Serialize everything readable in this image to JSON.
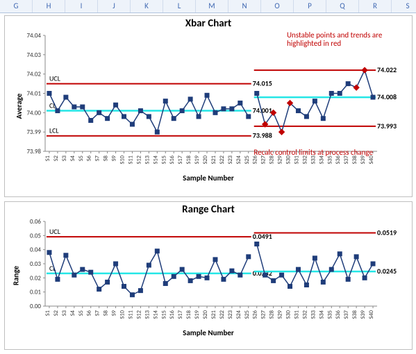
{
  "columns": [
    "G",
    "H",
    "I",
    "J",
    "K",
    "L",
    "M",
    "N",
    "O",
    "P",
    "Q",
    "R",
    "S"
  ],
  "note_text": "Unstable points and trends are highlighted in red",
  "recalc_text": "Recalc control limits at process change",
  "xbar": {
    "type": "line-control",
    "title": "Xbar Chart",
    "ylabel": "Average",
    "xlabel": "Sample Number",
    "ylim": [
      73.98,
      74.04
    ],
    "yticks": [
      73.98,
      73.99,
      74.0,
      74.01,
      74.02,
      74.03,
      74.04
    ],
    "split_index": 25,
    "categories": [
      "S1",
      "S2",
      "S3",
      "S4",
      "S5",
      "S6",
      "S7",
      "S8",
      "S9",
      "S10",
      "S11",
      "S12",
      "S13",
      "S14",
      "S15",
      "S16",
      "S17",
      "S18",
      "S19",
      "S20",
      "S21",
      "S22",
      "S23",
      "S24",
      "S25",
      "S26",
      "S27",
      "S28",
      "S29",
      "S30",
      "S31",
      "S32",
      "S33",
      "S34",
      "S35",
      "S36",
      "S37",
      "S38",
      "S39",
      "S40"
    ],
    "values": [
      74.01,
      74.001,
      74.008,
      74.003,
      74.003,
      73.996,
      74.0,
      73.997,
      74.004,
      73.998,
      73.994,
      74.001,
      73.998,
      73.99,
      74.006,
      73.997,
      74.001,
      74.007,
      73.998,
      74.009,
      74.0,
      74.002,
      74.002,
      74.005,
      73.998,
      74.01,
      73.994,
      74.0,
      73.99,
      74.005,
      74.001,
      73.998,
      74.006,
      73.997,
      74.01,
      74.01,
      74.015,
      74.013,
      74.022,
      74.008
    ],
    "unstable": [
      26,
      27,
      28,
      29,
      37,
      38
    ],
    "seg1": {
      "ucl": 74.015,
      "cl": 74.001,
      "lcl": 73.988,
      "ucl_tag": "UCL",
      "cl_tag": "CL",
      "lcl_tag": "LCL"
    },
    "seg2": {
      "ucl": 74.022,
      "cl": 74.008,
      "lcl": 73.993
    },
    "title_fontsize": 15,
    "label_fontsize": 11,
    "colors": {
      "ucl": "#c00000",
      "cl": "#25e6e6",
      "series": "#1f3d7a",
      "unstable": "#c00000",
      "bg": "#ffffff"
    }
  },
  "range": {
    "type": "line-control",
    "title": "Range Chart",
    "ylabel": "Range",
    "xlabel": "Sample Number",
    "ylim": [
      0,
      0.06
    ],
    "yticks": [
      0,
      0.01,
      0.02,
      0.03,
      0.04,
      0.05,
      0.06
    ],
    "split_index": 25,
    "categories": [
      "S1",
      "S2",
      "S3",
      "S4",
      "S5",
      "S6",
      "S7",
      "S8",
      "S9",
      "S10",
      "S11",
      "S12",
      "S13",
      "S14",
      "S15",
      "S16",
      "S17",
      "S18",
      "S19",
      "S20",
      "S21",
      "S22",
      "S23",
      "S24",
      "S25",
      "S26",
      "S27",
      "S28",
      "S29",
      "S30",
      "S31",
      "S32",
      "S33",
      "S34",
      "S35",
      "S36",
      "S37",
      "S38",
      "S39",
      "S40"
    ],
    "values": [
      0.038,
      0.019,
      0.036,
      0.022,
      0.026,
      0.024,
      0.012,
      0.017,
      0.03,
      0.014,
      0.008,
      0.011,
      0.029,
      0.039,
      0.016,
      0.021,
      0.026,
      0.018,
      0.021,
      0.02,
      0.033,
      0.019,
      0.025,
      0.022,
      0.035,
      0.044,
      0.022,
      0.018,
      0.022,
      0.014,
      0.026,
      0.015,
      0.034,
      0.017,
      0.026,
      0.037,
      0.019,
      0.035,
      0.02,
      0.03
    ],
    "unstable": [],
    "seg1": {
      "ucl": 0.0491,
      "cl": 0.0232,
      "ucl_tag": "UCL",
      "cl_tag": "CL"
    },
    "seg2": {
      "ucl": 0.0519,
      "cl": 0.0245
    },
    "title_fontsize": 15,
    "label_fontsize": 11,
    "colors": {
      "ucl": "#c00000",
      "cl": "#25e6e6",
      "series": "#1f3d7a",
      "bg": "#ffffff"
    }
  }
}
